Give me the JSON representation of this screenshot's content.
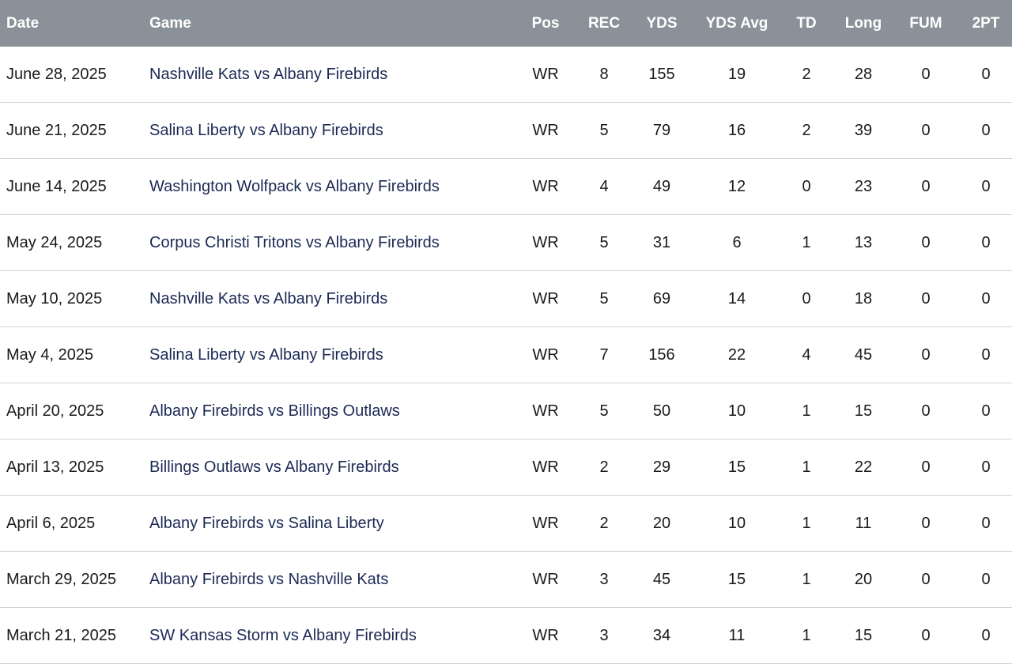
{
  "table": {
    "headers": {
      "date": "Date",
      "game": "Game",
      "pos": "Pos",
      "rec": "REC",
      "yds": "YDS",
      "yds_avg": "YDS Avg",
      "td": "TD",
      "long": "Long",
      "fum": "FUM",
      "two_pt": "2PT"
    },
    "rows": [
      {
        "date": "June 28, 2025",
        "game": "Nashville Kats vs Albany Firebirds",
        "pos": "WR",
        "rec": "8",
        "yds": "155",
        "yds_avg": "19",
        "td": "2",
        "long": "28",
        "fum": "0",
        "two_pt": "0"
      },
      {
        "date": "June 21, 2025",
        "game": "Salina Liberty vs Albany Firebirds",
        "pos": "WR",
        "rec": "5",
        "yds": "79",
        "yds_avg": "16",
        "td": "2",
        "long": "39",
        "fum": "0",
        "two_pt": "0"
      },
      {
        "date": "June 14, 2025",
        "game": "Washington Wolfpack vs Albany Firebirds",
        "pos": "WR",
        "rec": "4",
        "yds": "49",
        "yds_avg": "12",
        "td": "0",
        "long": "23",
        "fum": "0",
        "two_pt": "0"
      },
      {
        "date": "May 24, 2025",
        "game": "Corpus Christi Tritons vs Albany Firebirds",
        "pos": "WR",
        "rec": "5",
        "yds": "31",
        "yds_avg": "6",
        "td": "1",
        "long": "13",
        "fum": "0",
        "two_pt": "0"
      },
      {
        "date": "May 10, 2025",
        "game": "Nashville Kats vs Albany Firebirds",
        "pos": "WR",
        "rec": "5",
        "yds": "69",
        "yds_avg": "14",
        "td": "0",
        "long": "18",
        "fum": "0",
        "two_pt": "0"
      },
      {
        "date": "May 4, 2025",
        "game": "Salina Liberty vs Albany Firebirds",
        "pos": "WR",
        "rec": "7",
        "yds": "156",
        "yds_avg": "22",
        "td": "4",
        "long": "45",
        "fum": "0",
        "two_pt": "0"
      },
      {
        "date": "April 20, 2025",
        "game": "Albany Firebirds vs Billings Outlaws",
        "pos": "WR",
        "rec": "5",
        "yds": "50",
        "yds_avg": "10",
        "td": "1",
        "long": "15",
        "fum": "0",
        "two_pt": "0"
      },
      {
        "date": "April 13, 2025",
        "game": "Billings Outlaws vs Albany Firebirds",
        "pos": "WR",
        "rec": "2",
        "yds": "29",
        "yds_avg": "15",
        "td": "1",
        "long": "22",
        "fum": "0",
        "two_pt": "0"
      },
      {
        "date": "April 6, 2025",
        "game": "Albany Firebirds vs Salina Liberty",
        "pos": "WR",
        "rec": "2",
        "yds": "20",
        "yds_avg": "10",
        "td": "1",
        "long": "11",
        "fum": "0",
        "two_pt": "0"
      },
      {
        "date": "March 29, 2025",
        "game": "Albany Firebirds vs Nashville Kats",
        "pos": "WR",
        "rec": "3",
        "yds": "45",
        "yds_avg": "15",
        "td": "1",
        "long": "20",
        "fum": "0",
        "two_pt": "0"
      },
      {
        "date": "March 21, 2025",
        "game": "SW Kansas Storm vs Albany Firebirds",
        "pos": "WR",
        "rec": "3",
        "yds": "34",
        "yds_avg": "11",
        "td": "1",
        "long": "15",
        "fum": "0",
        "two_pt": "0"
      }
    ]
  },
  "colors": {
    "header_bg": "#8a9198",
    "link": "#1b2a55"
  }
}
